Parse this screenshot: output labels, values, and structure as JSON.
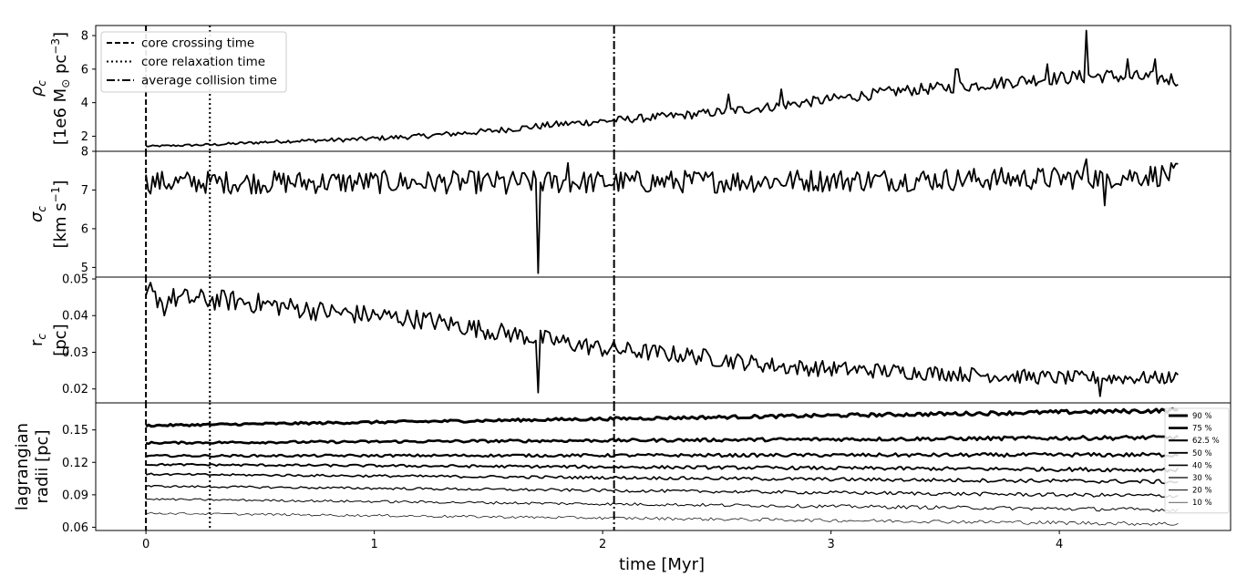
{
  "chart_data": {
    "type": "line",
    "xlabel": "time [Myr]",
    "x_ticks": [
      "0",
      "1",
      "2",
      "3",
      "4"
    ],
    "xlim": [
      -0.22,
      4.75
    ],
    "reference_lines": [
      {
        "name": "core crossing time",
        "x": 0.0,
        "style": "dashed"
      },
      {
        "name": "core relaxation time",
        "x": 0.28,
        "style": "dotted"
      },
      {
        "name": "average collision time",
        "x": 2.05,
        "style": "dashdot"
      }
    ],
    "legend": {
      "position": "upper-left",
      "entries": [
        "core crossing time",
        "core relaxation time",
        "average collision time"
      ]
    },
    "panels": [
      {
        "id": "rho",
        "ylabel_symbol": "ρ",
        "ylabel_sub": "c",
        "ylabel_units_pre": "[1e6 M",
        "ylabel_units_sun": "⊙",
        "ylabel_units_mid": " pc",
        "ylabel_units_sup": "−3",
        "ylabel_units_post": "]",
        "ylim": [
          1.1,
          8.6
        ],
        "y_ticks": [
          "2",
          "4",
          "6",
          "8"
        ],
        "y_tick_values": [
          2,
          4,
          6,
          8
        ],
        "key_points": [
          [
            0,
            1.4
          ],
          [
            0.3,
            1.5
          ],
          [
            0.6,
            1.7
          ],
          [
            0.9,
            1.8
          ],
          [
            1.2,
            2.0
          ],
          [
            1.5,
            2.3
          ],
          [
            1.8,
            2.7
          ],
          [
            2.1,
            3.0
          ],
          [
            2.4,
            3.3
          ],
          [
            2.7,
            3.7
          ],
          [
            3.0,
            4.2
          ],
          [
            3.3,
            4.7
          ],
          [
            3.6,
            5.0
          ],
          [
            3.9,
            5.4
          ],
          [
            4.2,
            5.6
          ],
          [
            4.5,
            5.4
          ]
        ],
        "noise_start": 0.05,
        "noise_end": 0.45,
        "spikes": [
          [
            2.55,
            4.5
          ],
          [
            2.78,
            4.8
          ],
          [
            3.55,
            6.0
          ],
          [
            3.95,
            6.3
          ],
          [
            4.12,
            8.3
          ],
          [
            4.3,
            6.6
          ],
          [
            4.42,
            6.6
          ]
        ],
        "series_count": 1
      },
      {
        "id": "sigma",
        "ylabel_symbol": "σ",
        "ylabel_sub": "c",
        "ylabel_units_pre": "[km s",
        "ylabel_units_sup": "−1",
        "ylabel_units_post": "]",
        "ylim": [
          4.75,
          8.0
        ],
        "y_ticks": [
          "5",
          "6",
          "7",
          "8"
        ],
        "y_tick_values": [
          5,
          6,
          7,
          8
        ],
        "key_points": [
          [
            0,
            7.2
          ],
          [
            1.0,
            7.2
          ],
          [
            2.0,
            7.2
          ],
          [
            3.0,
            7.25
          ],
          [
            4.0,
            7.3
          ],
          [
            4.5,
            7.4
          ]
        ],
        "noise_start": 0.3,
        "noise_end": 0.3,
        "spikes": [
          [
            1.72,
            4.85
          ],
          [
            1.58,
            6.9
          ],
          [
            1.85,
            7.7
          ],
          [
            4.12,
            7.8
          ],
          [
            4.2,
            6.6
          ]
        ],
        "series_count": 1
      },
      {
        "id": "rc",
        "ylabel_symbol": "r",
        "ylabel_sub": "c",
        "ylabel_units_pre": "[pc]",
        "ylim": [
          0.0162,
          0.0505
        ],
        "y_ticks": [
          "0.02",
          "0.03",
          "0.04",
          "0.05"
        ],
        "y_tick_values": [
          0.02,
          0.03,
          0.04,
          0.05
        ],
        "key_points": [
          [
            0,
            0.045
          ],
          [
            0.4,
            0.044
          ],
          [
            0.8,
            0.041
          ],
          [
            1.2,
            0.039
          ],
          [
            1.6,
            0.035
          ],
          [
            2.0,
            0.031
          ],
          [
            2.4,
            0.029
          ],
          [
            2.8,
            0.026
          ],
          [
            3.2,
            0.025
          ],
          [
            3.6,
            0.024
          ],
          [
            4.0,
            0.023
          ],
          [
            4.5,
            0.023
          ]
        ],
        "noise_start": 0.003,
        "noise_end": 0.0018,
        "spikes": [
          [
            0.02,
            0.049
          ],
          [
            0.08,
            0.04
          ],
          [
            1.72,
            0.019
          ],
          [
            4.18,
            0.018
          ]
        ],
        "series_count": 1
      },
      {
        "id": "lagrangian",
        "ylabel_line1": "lagrangian",
        "ylabel_line2": "radii [pc]",
        "ylim": [
          0.057,
          0.175
        ],
        "y_ticks": [
          "0.06",
          "0.09",
          "0.12",
          "0.15"
        ],
        "y_tick_values": [
          0.06,
          0.09,
          0.12,
          0.15
        ],
        "series": [
          {
            "name": "90 %",
            "start": 0.154,
            "end": 0.168,
            "width": 3.0
          },
          {
            "name": "75 %",
            "start": 0.138,
            "end": 0.143,
            "width": 2.6
          },
          {
            "name": "62.5 %",
            "start": 0.126,
            "end": 0.127,
            "width": 2.2
          },
          {
            "name": "50 %",
            "start": 0.118,
            "end": 0.113,
            "width": 1.9
          },
          {
            "name": "40 %",
            "start": 0.109,
            "end": 0.102,
            "width": 1.6
          },
          {
            "name": "30 %",
            "start": 0.098,
            "end": 0.089,
            "width": 1.3
          },
          {
            "name": "20 %",
            "start": 0.086,
            "end": 0.076,
            "width": 1.0
          },
          {
            "name": "10 %",
            "start": 0.073,
            "end": 0.063,
            "width": 0.7
          }
        ],
        "legend": {
          "position": "upper-right"
        }
      }
    ]
  }
}
